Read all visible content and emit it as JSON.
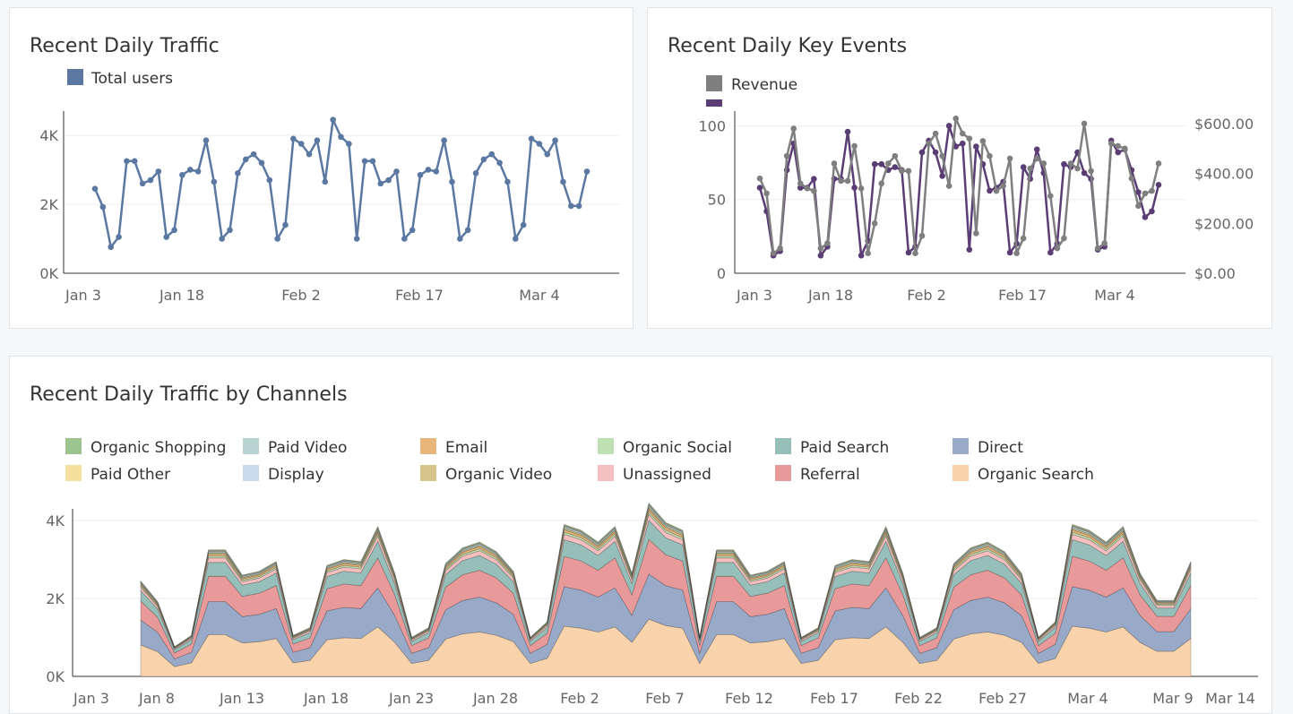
{
  "colors": {
    "total_users": "#5a78a1",
    "revenue": "#7f7f7f",
    "purchases": "#5a3d74",
    "grid": "#ebebeb",
    "axis": "#333333",
    "tick_text": "#666666"
  },
  "panels": {
    "traffic": {
      "title": "Recent Daily Traffic"
    },
    "key_events": {
      "title": "Recent Daily Key Events"
    },
    "channels": {
      "title": "Recent Daily Traffic by Channels"
    }
  },
  "chart_data": [
    {
      "type": "line",
      "title": "Recent Daily Traffic",
      "legend": [
        "Total users"
      ],
      "x_ticks": [
        "Jan 3",
        "Jan 18",
        "Feb 2",
        "Feb 17",
        "Mar 4"
      ],
      "y_ticks": [
        "0K",
        "2K",
        "4K"
      ],
      "ylim": [
        0,
        4700
      ],
      "series": [
        {
          "name": "Total users",
          "color": "#5a78a1",
          "values": [
            2450,
            1920,
            760,
            1050,
            3250,
            3250,
            2600,
            2700,
            2950,
            1050,
            1250,
            2850,
            3000,
            2950,
            3850,
            2650,
            1000,
            1250,
            2900,
            3300,
            3450,
            3200,
            2700,
            1000,
            1400,
            3900,
            3750,
            3450,
            3850,
            2650,
            4450,
            3950,
            3750,
            1000,
            3250,
            3250,
            2600,
            2700,
            2950,
            1000,
            1250,
            2850,
            3000,
            2950,
            3850,
            2650,
            1000,
            1250,
            2900,
            3300,
            3450,
            3200,
            2650,
            1000,
            1400,
            3900,
            3750,
            3450,
            3850,
            2650,
            1950,
            1950,
            2950
          ]
        }
      ]
    },
    {
      "type": "line",
      "title": "Recent Daily Key Events",
      "legend": [
        "Revenue"
      ],
      "x_ticks": [
        "Jan 3",
        "Jan 18",
        "Feb 2",
        "Feb 17",
        "Mar 4"
      ],
      "y_left_ticks": [
        "0",
        "50",
        "100"
      ],
      "y_right_ticks": [
        "$0.00",
        "$200.00",
        "$400.00",
        "$600.00"
      ],
      "ylim_left": [
        0,
        110
      ],
      "ylim_right": [
        0,
        650
      ],
      "series": [
        {
          "name": "",
          "axis": "left",
          "color": "#5a3d74",
          "values": [
            58,
            42,
            12,
            15,
            70,
            88,
            58,
            58,
            64,
            12,
            18,
            64,
            64,
            96,
            58,
            12,
            22,
            74,
            74,
            70,
            72,
            70,
            14,
            18,
            82,
            90,
            82,
            66,
            100,
            86,
            88,
            16,
            86,
            74,
            56,
            58,
            62,
            14,
            20,
            72,
            64,
            84,
            68,
            14,
            20,
            74,
            72,
            82,
            68,
            64,
            16,
            18,
            90,
            82,
            84,
            70,
            55,
            38,
            42,
            60
          ]
        },
        {
          "name": "Revenue",
          "axis": "right",
          "color": "#7f7f7f",
          "values": [
            380,
            320,
            80,
            100,
            470,
            580,
            360,
            340,
            330,
            100,
            120,
            440,
            370,
            370,
            510,
            340,
            80,
            200,
            360,
            440,
            470,
            410,
            410,
            80,
            150,
            520,
            560,
            470,
            350,
            620,
            560,
            540,
            160,
            530,
            470,
            330,
            350,
            460,
            80,
            140,
            420,
            460,
            440,
            310,
            100,
            140,
            440,
            420,
            600,
            410,
            100,
            120,
            520,
            510,
            500,
            380,
            270,
            320,
            330,
            440
          ]
        }
      ]
    },
    {
      "type": "area",
      "stacked": true,
      "title": "Recent Daily Traffic by Channels",
      "x_ticks": [
        "Jan 3",
        "Jan 8",
        "Jan 13",
        "Jan 18",
        "Jan 23",
        "Jan 28",
        "Feb 2",
        "Feb 7",
        "Feb 12",
        "Feb 17",
        "Feb 22",
        "Feb 27",
        "Mar 4",
        "Mar 9",
        "Mar 14"
      ],
      "y_ticks": [
        "0K",
        "2K",
        "4K"
      ],
      "ylim": [
        0,
        4300
      ],
      "legend": [
        "Organic Shopping",
        "Paid Video",
        "Email",
        "Organic Social",
        "Paid Search",
        "Direct",
        "Paid Other",
        "Display",
        "Organic Video",
        "Unassigned",
        "Referral",
        "Organic Search"
      ],
      "total": [
        2450,
        1920,
        760,
        1050,
        3250,
        3250,
        2600,
        2700,
        2950,
        1050,
        1250,
        2850,
        3000,
        2950,
        3850,
        2650,
        1000,
        1250,
        2900,
        3300,
        3450,
        3200,
        2700,
        1000,
        1400,
        3900,
        3750,
        3450,
        3850,
        2650,
        4450,
        3950,
        3750,
        1000,
        3250,
        3250,
        2600,
        2700,
        2950,
        1000,
        1250,
        2850,
        3000,
        2950,
        3850,
        2650,
        1000,
        1250,
        2900,
        3300,
        3450,
        3200,
        2650,
        1000,
        1400,
        3900,
        3750,
        3450,
        3850,
        2650,
        1950,
        1950,
        2950
      ],
      "series": [
        {
          "name": "Organic Search",
          "color": "#f9d3ac",
          "share": 0.33
        },
        {
          "name": "Direct",
          "color": "#98aac7",
          "share": 0.26
        },
        {
          "name": "Referral",
          "color": "#e8999a",
          "share": 0.2
        },
        {
          "name": "Paid Search",
          "color": "#96bfba",
          "share": 0.11
        },
        {
          "name": "Unassigned",
          "color": "#f6bfbf",
          "share": 0.035
        },
        {
          "name": "Organic Social",
          "color": "#bfe0b2",
          "share": 0.015
        },
        {
          "name": "Email",
          "color": "#e8b67a",
          "share": 0.015
        },
        {
          "name": "Organic Video",
          "color": "#d7c48b",
          "share": 0.01
        },
        {
          "name": "Paid Video",
          "color": "#b9d3d1",
          "share": 0.01
        },
        {
          "name": "Display",
          "color": "#c9dcee",
          "share": 0.005
        },
        {
          "name": "Paid Other",
          "color": "#f5e0a0",
          "share": 0.005
        },
        {
          "name": "Organic Shopping",
          "color": "#9cc48e",
          "share": 0.005
        }
      ]
    }
  ]
}
